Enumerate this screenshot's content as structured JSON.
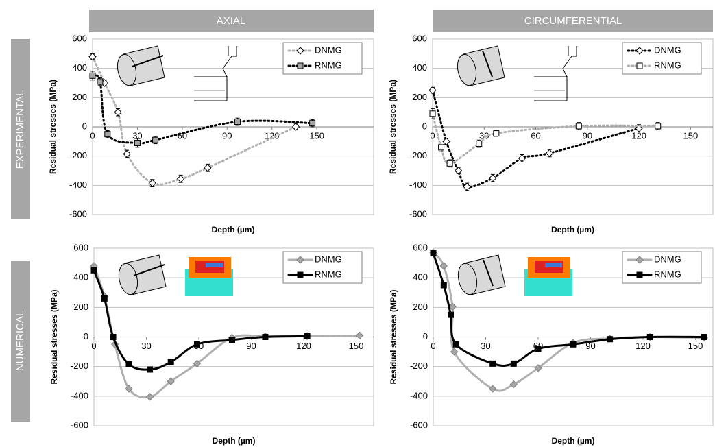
{
  "column_headers": [
    "AXIAL",
    "CIRCUMFERENTIAL"
  ],
  "row_headers": [
    "EXPERIMENTAL",
    "NUMERICAL"
  ],
  "chart_data": [
    {
      "type": "line",
      "xlabel": "Depth (µm)",
      "ylabel": "Residual stresses (MPa)",
      "xlim": [
        0,
        188
      ],
      "ylim": [
        -600,
        600
      ],
      "xticks": [
        0,
        30,
        60,
        90,
        120,
        150
      ],
      "yticks": [
        -600,
        -400,
        -200,
        0,
        200,
        400,
        600
      ],
      "grid": "y",
      "legend": "upper right",
      "series": [
        {
          "name": "DNMG",
          "color": "#b0b0b0",
          "line_style": "dotted",
          "marker": "diamond",
          "marker_fill": "#ffffff",
          "x": [
            0,
            8,
            17,
            23,
            40,
            59,
            77,
            136
          ],
          "values": [
            480,
            300,
            100,
            -185,
            -385,
            -355,
            -280,
            0
          ],
          "errors": [
            20,
            15,
            25,
            25,
            25,
            25,
            25,
            20
          ]
        },
        {
          "name": "RNMG",
          "color": "#000000",
          "line_style": "dotted",
          "marker": "square",
          "marker_fill": "#a6a6a6",
          "x": [
            0,
            5,
            10,
            30,
            42,
            97,
            147
          ],
          "values": [
            350,
            310,
            -50,
            -110,
            -90,
            35,
            25
          ],
          "errors": [
            30,
            25,
            25,
            30,
            25,
            25,
            25
          ]
        }
      ]
    },
    {
      "type": "line",
      "xlabel": "Depth (µm)",
      "ylabel": "Residual stresses (MPa)",
      "xlim": [
        0,
        163
      ],
      "ylim": [
        -600,
        600
      ],
      "xticks": [
        0,
        30,
        60,
        90,
        120,
        150
      ],
      "yticks": [
        -600,
        -400,
        -200,
        0,
        200,
        400,
        600
      ],
      "grid": "y",
      "legend": "upper right",
      "series": [
        {
          "name": "DNMG",
          "color": "#000000",
          "line_style": "dotted",
          "marker": "diamond",
          "marker_fill": "#ffffff",
          "x": [
            0,
            8,
            15,
            20,
            35,
            52,
            68,
            120
          ],
          "values": [
            250,
            -100,
            -300,
            -410,
            -350,
            -215,
            -180,
            -10
          ],
          "errors": [
            20,
            20,
            20,
            25,
            25,
            25,
            25,
            25
          ]
        },
        {
          "name": "RNMG",
          "color": "#b0b0b0",
          "line_style": "dotted",
          "marker": "square",
          "marker_fill": "#ffffff",
          "x": [
            0,
            5,
            10,
            27,
            37,
            85,
            131
          ],
          "values": [
            90,
            -140,
            -250,
            -115,
            -45,
            5,
            5
          ],
          "errors": [
            35,
            30,
            25,
            25,
            20,
            25,
            25
          ]
        }
      ]
    },
    {
      "type": "line",
      "xlabel": "Depth (µm)",
      "ylabel": "Residual stresses (MPa)",
      "xlim": [
        0,
        160
      ],
      "ylim": [
        -600,
        600
      ],
      "xticks": [
        0,
        30,
        60,
        90,
        120,
        150
      ],
      "yticks": [
        -600,
        -400,
        -200,
        0,
        200,
        400,
        600
      ],
      "grid": "y",
      "legend": "upper right",
      "series": [
        {
          "name": "DNMG",
          "color": "#b0b0b0",
          "line_style": "solid",
          "marker": "diamond",
          "marker_fill": "#a6a6a6",
          "x": [
            0,
            6,
            12,
            20,
            32,
            44,
            59,
            79,
            98,
            122,
            152
          ],
          "values": [
            480,
            275,
            -50,
            -350,
            -405,
            -300,
            -180,
            -5,
            5,
            5,
            10
          ]
        },
        {
          "name": "RNMG",
          "color": "#000000",
          "line_style": "solid",
          "marker": "square",
          "marker_fill": "#000000",
          "x": [
            0,
            6,
            11,
            20,
            32,
            44,
            59,
            79,
            98,
            122
          ],
          "values": [
            450,
            260,
            0,
            -185,
            -220,
            -170,
            -50,
            -20,
            0,
            5
          ]
        }
      ]
    },
    {
      "type": "line",
      "xlabel": "Depth (µm)",
      "ylabel": "Residual stresses (MPa)",
      "xlim": [
        0,
        160
      ],
      "ylim": [
        -600,
        600
      ],
      "xticks": [
        0,
        30,
        60,
        90,
        120,
        150
      ],
      "yticks": [
        -600,
        -400,
        -200,
        0,
        200,
        400,
        600
      ],
      "grid": "y",
      "legend": "upper right",
      "series": [
        {
          "name": "DNMG",
          "color": "#b0b0b0",
          "line_style": "solid",
          "marker": "diamond",
          "marker_fill": "#a6a6a6",
          "x": [
            0,
            6,
            11,
            12,
            34,
            46,
            60,
            80,
            101,
            124,
            155
          ],
          "values": [
            570,
            480,
            205,
            -100,
            -350,
            -320,
            -210,
            -40,
            -10,
            0,
            -5
          ]
        },
        {
          "name": "RNMG",
          "color": "#000000",
          "line_style": "solid",
          "marker": "square",
          "marker_fill": "#000000",
          "x": [
            0,
            6,
            10,
            13,
            34,
            46,
            60,
            80,
            101,
            124,
            155
          ],
          "values": [
            565,
            350,
            150,
            -50,
            -180,
            -180,
            -80,
            -50,
            -15,
            0,
            0
          ]
        }
      ]
    }
  ]
}
